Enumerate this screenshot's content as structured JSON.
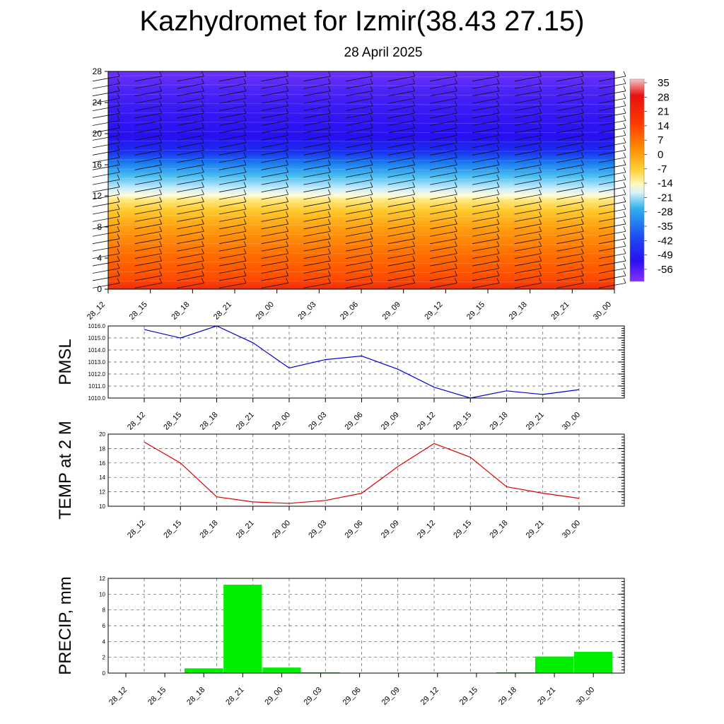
{
  "title": "Kazhydromet for Izmir(38.43 27.15)",
  "subtitle": "28 April 2025",
  "chart_data": [
    {
      "type": "heatmap",
      "name": "upper-air",
      "x_labels": [
        "28_12",
        "28_15",
        "28_18",
        "28_21",
        "29_00",
        "29_03",
        "29_06",
        "29_09",
        "29_12",
        "29_15",
        "29_18",
        "29_21",
        "30_00"
      ],
      "y_ticks": [
        0,
        4,
        8,
        12,
        16,
        20,
        24,
        28
      ],
      "ylim": [
        0,
        28
      ],
      "colorbar_labels": [
        "35",
        "28",
        "21",
        "14",
        "7",
        "0",
        "-7",
        "-14",
        "-21",
        "-28",
        "-35",
        "-42",
        "-49",
        "-56"
      ],
      "zero_level": 11.8,
      "surface_value": 20,
      "top_value": -60
    },
    {
      "type": "line",
      "name": "pmsl",
      "ylabel": "PMSL",
      "x": [
        "28_12",
        "28_15",
        "28_18",
        "28_21",
        "29_00",
        "29_03",
        "29_06",
        "29_09",
        "29_12",
        "29_15",
        "29_18",
        "29_21",
        "30_00"
      ],
      "values": [
        1015.7,
        1015.0,
        1016.0,
        1014.6,
        1012.5,
        1013.2,
        1013.5,
        1012.4,
        1010.9,
        1010.0,
        1010.6,
        1010.3,
        1010.7
      ],
      "ylim": [
        1010,
        1016
      ],
      "y_ticks": [
        "1010.0",
        "1011.0",
        "1012.0",
        "1013.0",
        "1014.0",
        "1015.0",
        "1016.0"
      ],
      "color": "#0000dd"
    },
    {
      "type": "line",
      "name": "temp",
      "ylabel": "TEMP at 2 M",
      "x": [
        "28_12",
        "28_15",
        "28_18",
        "28_21",
        "29_00",
        "29_03",
        "29_06",
        "29_09",
        "29_12",
        "29_15",
        "29_18",
        "29_21",
        "30_00"
      ],
      "values": [
        18.9,
        16.0,
        11.3,
        10.6,
        10.4,
        10.8,
        11.8,
        15.5,
        18.7,
        16.8,
        12.7,
        11.8,
        11.1
      ],
      "ylim": [
        10,
        20
      ],
      "y_ticks": [
        "10",
        "12",
        "14",
        "16",
        "18",
        "20"
      ],
      "color": "#dd0000"
    },
    {
      "type": "bar",
      "name": "precip",
      "ylabel": "PRECIP, mm",
      "categories": [
        "28_12",
        "28_15",
        "28_18",
        "28_21",
        "29_00",
        "29_03",
        "29_06",
        "29_09",
        "29_12",
        "29_15",
        "29_18",
        "29_21",
        "30_00"
      ],
      "values": [
        0,
        0,
        0.6,
        11.2,
        0.7,
        0.1,
        0,
        0,
        0,
        0,
        0.1,
        2.1,
        2.7
      ],
      "ylim": [
        0,
        12
      ],
      "y_ticks": [
        "0",
        "2",
        "4",
        "6",
        "8",
        "10",
        "12"
      ],
      "color": "#00ee00"
    }
  ]
}
